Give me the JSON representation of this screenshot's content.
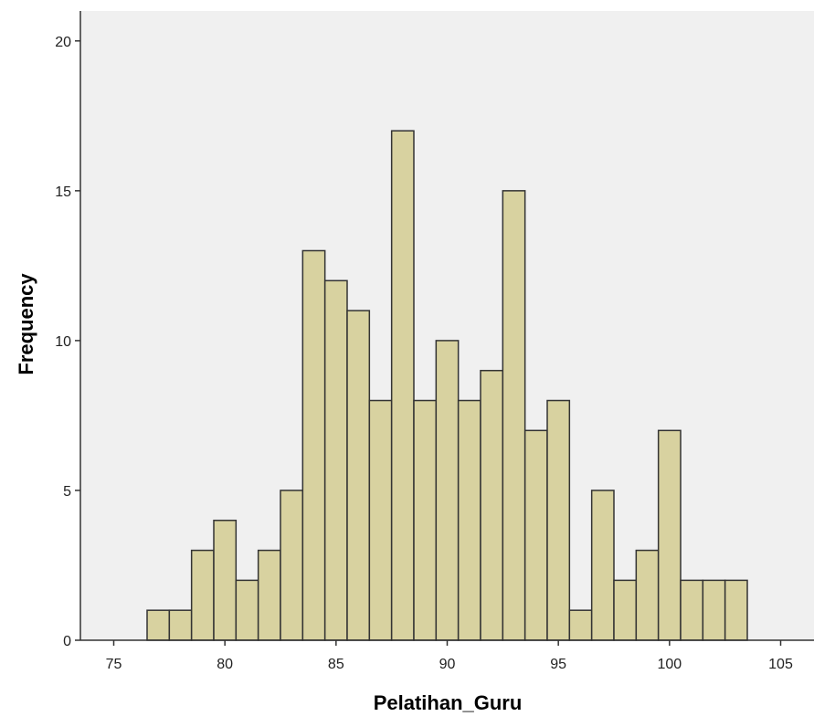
{
  "chart_data": {
    "type": "bar",
    "subtype": "histogram",
    "title": "",
    "xlabel": "Pelatihan_Guru",
    "ylabel": "Frequency",
    "xlim": [
      73.5,
      106.5
    ],
    "ylim": [
      0,
      21
    ],
    "x_ticks": [
      75,
      80,
      85,
      90,
      95,
      100,
      105
    ],
    "y_ticks": [
      0,
      5,
      10,
      15,
      20
    ],
    "bin_width": 1,
    "bins": [
      {
        "center": 77,
        "count": 1
      },
      {
        "center": 78,
        "count": 1
      },
      {
        "center": 79,
        "count": 3
      },
      {
        "center": 80,
        "count": 4
      },
      {
        "center": 81,
        "count": 2
      },
      {
        "center": 82,
        "count": 3
      },
      {
        "center": 83,
        "count": 5
      },
      {
        "center": 84,
        "count": 13
      },
      {
        "center": 85,
        "count": 12
      },
      {
        "center": 86,
        "count": 11
      },
      {
        "center": 87,
        "count": 8
      },
      {
        "center": 88,
        "count": 17
      },
      {
        "center": 89,
        "count": 8
      },
      {
        "center": 90,
        "count": 10
      },
      {
        "center": 91,
        "count": 8
      },
      {
        "center": 92,
        "count": 9
      },
      {
        "center": 93,
        "count": 15
      },
      {
        "center": 94,
        "count": 7
      },
      {
        "center": 95,
        "count": 8
      },
      {
        "center": 96,
        "count": 1
      },
      {
        "center": 97,
        "count": 5
      },
      {
        "center": 98,
        "count": 2
      },
      {
        "center": 99,
        "count": 3
      },
      {
        "center": 100,
        "count": 7
      },
      {
        "center": 101,
        "count": 2
      },
      {
        "center": 102,
        "count": 2
      },
      {
        "center": 103,
        "count": 2
      }
    ],
    "grid": false,
    "colors": {
      "bar_fill": "#d8d2a0",
      "bar_stroke": "#333333",
      "plot_background": "#f0f0f0",
      "axis": "#333333"
    }
  }
}
